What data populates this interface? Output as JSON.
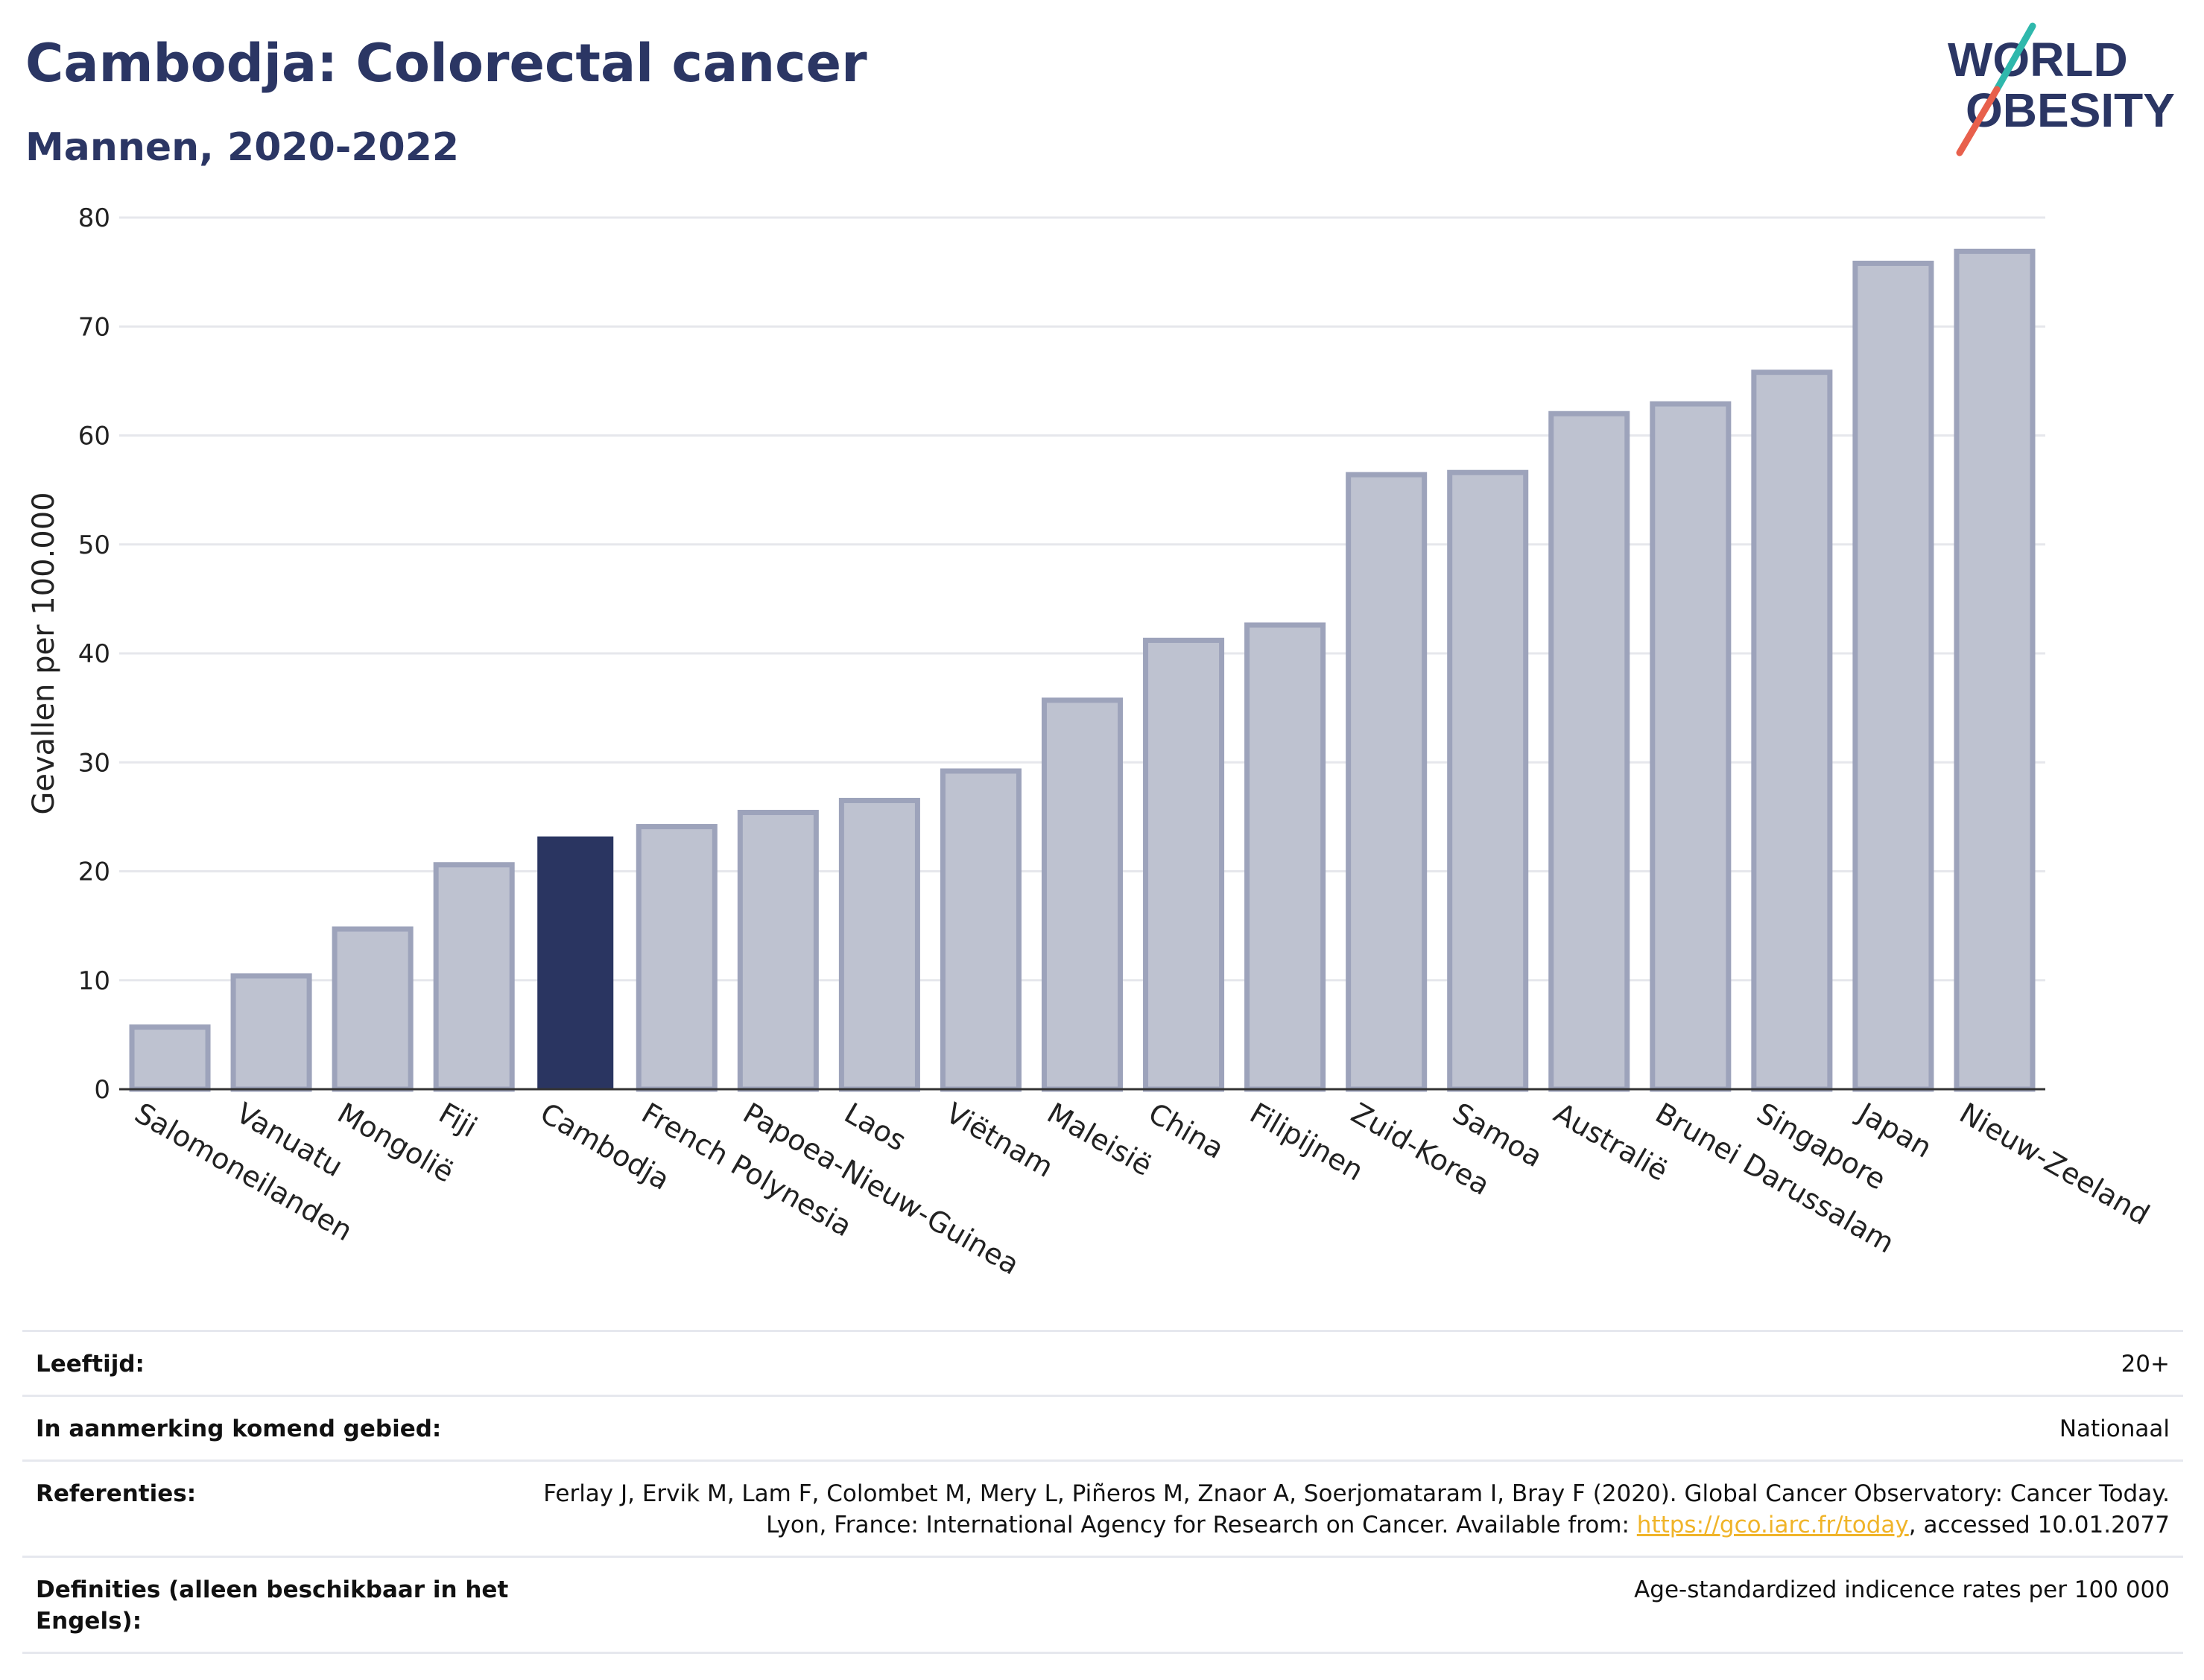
{
  "header": {
    "title": "Cambodja: Colorectal cancer",
    "subtitle": "Mannen, 2020-2022"
  },
  "logo": {
    "line1": "WORLD",
    "line2": "OBESITY",
    "accent_teal": "#2fb8ac",
    "accent_red": "#e8604c"
  },
  "colors": {
    "bar": "#bec2d0",
    "bar_stroke": "#9da3bb",
    "highlight": "#2a3561",
    "grid": "#e6e7ec",
    "text": "#2b3664"
  },
  "chart_data": {
    "type": "bar",
    "ylabel": "Gevallen per 100.000",
    "ylim": [
      0,
      80
    ],
    "yticks": [
      0,
      10,
      20,
      30,
      40,
      50,
      60,
      70,
      80
    ],
    "grid": true,
    "highlight": "Cambodja",
    "categories": [
      "Salomoneilanden",
      "Vanuatu",
      "Mongolië",
      "Fiji",
      "Cambodja",
      "French Polynesia",
      "Papoea-Nieuw-Guinea",
      "Laos",
      "Viëtnam",
      "Maleisië",
      "China",
      "Filipijnen",
      "Zuid-Korea",
      "Samoa",
      "Australië",
      "Brunei Darussalam",
      "Singapore",
      "Japan",
      "Nieuw-Zeeland"
    ],
    "values": [
      5.7,
      10.4,
      14.7,
      20.6,
      23.2,
      24.1,
      25.4,
      26.5,
      29.2,
      35.7,
      41.2,
      42.6,
      56.4,
      56.6,
      62.0,
      62.9,
      65.8,
      75.8,
      76.9
    ]
  },
  "footer": {
    "rows": [
      {
        "label": "Leeftijd:",
        "value": "20+"
      },
      {
        "label": "In aanmerking komend gebied:",
        "value": "Nationaal"
      },
      {
        "label": "Referenties:",
        "value": "Ferlay J, Ervik M, Lam F, Colombet M, Mery L, Piñeros M, Znaor A, Soerjomataram I, Bray F (2020). Global Cancer Observatory: Cancer Today. Lyon, France: International Agency for Research on Cancer. Available from: ",
        "link": "https://gco.iarc.fr/today",
        "suffix": ", accessed 10.01.2077"
      },
      {
        "label": "Definities (alleen beschikbaar in het Engels):",
        "value": "Age-standardized indicence rates per 100 000"
      }
    ]
  }
}
